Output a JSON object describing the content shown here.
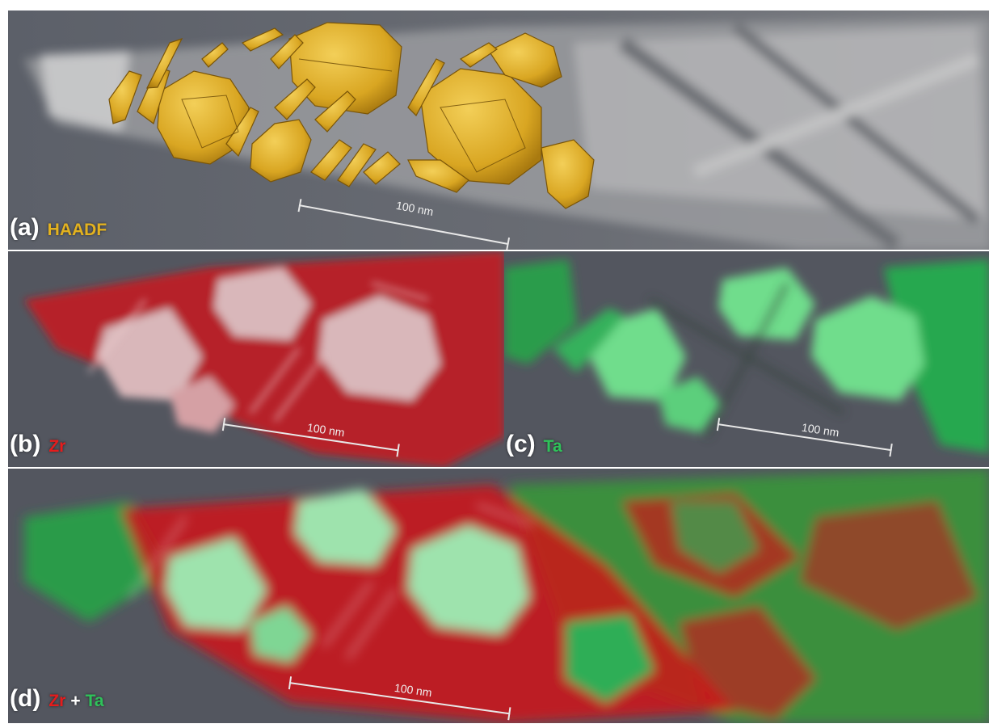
{
  "colors": {
    "haadf": "#e3b21f",
    "zr": "#e51c1c",
    "ta": "#2fc25a",
    "background": "#52565f"
  },
  "panels": {
    "a": {
      "letter": "(a)",
      "signal": "HAADF",
      "scalebar": "100 nm"
    },
    "b": {
      "letter": "(b)",
      "signal": "Zr",
      "scalebar": "100 nm"
    },
    "c": {
      "letter": "(c)",
      "signal": "Ta",
      "scalebar": "100 nm"
    },
    "d": {
      "letter": "(d)",
      "signal_1": "Zr",
      "plus": "+",
      "signal_2": "Ta",
      "scalebar": "100 nm"
    }
  }
}
